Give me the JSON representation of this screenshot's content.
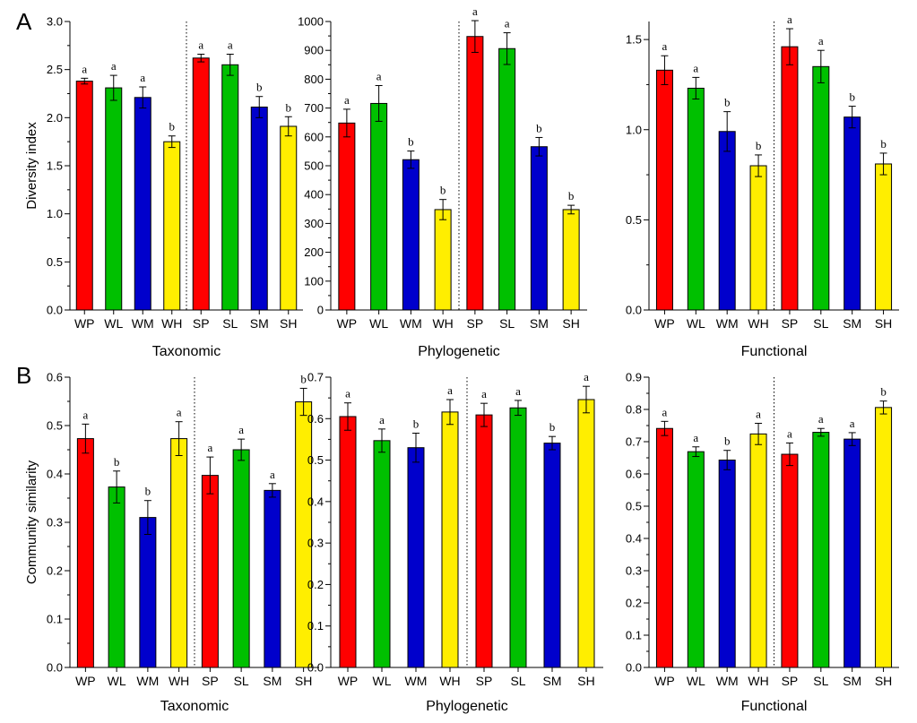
{
  "row_labels": [
    "A",
    "B"
  ],
  "ylabels": [
    "Diversity index",
    "Community similarity"
  ],
  "colors": [
    "#ff0000",
    "#00c000",
    "#0000cc",
    "#ffee00"
  ],
  "chart_data": [
    {
      "type": "bar",
      "title": "Taxonomic",
      "ylabel": "Diversity index",
      "categories": [
        "WP",
        "WL",
        "WM",
        "WH",
        "SP",
        "SL",
        "SM",
        "SH"
      ],
      "values": [
        2.38,
        2.31,
        2.21,
        1.75,
        2.62,
        2.55,
        2.11,
        1.91
      ],
      "errors": [
        0.03,
        0.13,
        0.11,
        0.06,
        0.04,
        0.11,
        0.11,
        0.1
      ],
      "letters": [
        "a",
        "a",
        "a",
        "b",
        "a",
        "a",
        "b",
        "b"
      ],
      "ylim": [
        0,
        3.0
      ],
      "yticks": [
        "0.0",
        "0.5",
        "1.0",
        "1.5",
        "2.0",
        "2.5",
        "3.0"
      ]
    },
    {
      "type": "bar",
      "title": "Phylogenetic",
      "ylabel": "",
      "categories": [
        "WP",
        "WL",
        "WM",
        "WH",
        "SP",
        "SL",
        "SM",
        "SH"
      ],
      "values": [
        648,
        716,
        521,
        348,
        948,
        906,
        566,
        348
      ],
      "errors": [
        48,
        62,
        30,
        35,
        55,
        55,
        32,
        15
      ],
      "letters": [
        "a",
        "a",
        "b",
        "b",
        "a",
        "a",
        "b",
        "b"
      ],
      "ylim": [
        0,
        1000
      ],
      "yticks": [
        "0",
        "100",
        "200",
        "300",
        "400",
        "500",
        "600",
        "700",
        "800",
        "900",
        "1000"
      ]
    },
    {
      "type": "bar",
      "title": "Functional",
      "ylabel": "",
      "categories": [
        "WP",
        "WL",
        "WM",
        "WH",
        "SP",
        "SL",
        "SM",
        "SH"
      ],
      "values": [
        1.33,
        1.23,
        0.99,
        0.8,
        1.46,
        1.35,
        1.07,
        0.81
      ],
      "errors": [
        0.08,
        0.06,
        0.11,
        0.06,
        0.1,
        0.09,
        0.06,
        0.06
      ],
      "letters": [
        "a",
        "a",
        "b",
        "b",
        "a",
        "a",
        "b",
        "b"
      ],
      "ylim": [
        0,
        1.6
      ],
      "yticks": [
        "0.0",
        "0.5",
        "1.0",
        "1.5"
      ]
    },
    {
      "type": "bar",
      "title": "Taxonomic",
      "ylabel": "Community similarity",
      "categories": [
        "WP",
        "WL",
        "WM",
        "WH",
        "SP",
        "SL",
        "SM",
        "SH"
      ],
      "values": [
        0.473,
        0.373,
        0.31,
        0.473,
        0.397,
        0.45,
        0.366,
        0.549
      ],
      "errors": [
        0.03,
        0.033,
        0.035,
        0.035,
        0.038,
        0.022,
        0.014,
        0.028
      ],
      "letters": [
        "a",
        "b",
        "b",
        "a",
        "a",
        "a",
        "a",
        "b"
      ],
      "ylim": [
        0,
        0.6
      ],
      "yticks": [
        "0.0",
        "0.1",
        "0.2",
        "0.3",
        "0.4",
        "0.5",
        "0.6"
      ]
    },
    {
      "type": "bar",
      "title": "Phylogenetic",
      "ylabel": "",
      "categories": [
        "WP",
        "WL",
        "WM",
        "WH",
        "SP",
        "SL",
        "SM",
        "SH"
      ],
      "values": [
        0.605,
        0.547,
        0.53,
        0.616,
        0.609,
        0.626,
        0.541,
        0.646
      ],
      "errors": [
        0.033,
        0.028,
        0.035,
        0.03,
        0.028,
        0.018,
        0.016,
        0.032
      ],
      "letters": [
        "a",
        "a",
        "b",
        "a",
        "a",
        "a",
        "b",
        "a"
      ],
      "ylim": [
        0,
        0.7
      ],
      "yticks": [
        "0.0",
        "0.1",
        "0.2",
        "0.3",
        "0.4",
        "0.5",
        "0.6",
        "0.7"
      ]
    },
    {
      "type": "bar",
      "title": "Functional",
      "ylabel": "",
      "categories": [
        "WP",
        "WL",
        "WM",
        "WH",
        "SP",
        "SL",
        "SM",
        "SH"
      ],
      "values": [
        0.741,
        0.669,
        0.643,
        0.724,
        0.661,
        0.729,
        0.708,
        0.806
      ],
      "errors": [
        0.022,
        0.015,
        0.03,
        0.033,
        0.035,
        0.012,
        0.02,
        0.02
      ],
      "letters": [
        "a",
        "a",
        "b",
        "a",
        "a",
        "a",
        "a",
        "b"
      ],
      "ylim": [
        0,
        0.9
      ],
      "yticks": [
        "0.0",
        "0.1",
        "0.2",
        "0.3",
        "0.4",
        "0.5",
        "0.6",
        "0.7",
        "0.8",
        "0.9"
      ]
    }
  ]
}
